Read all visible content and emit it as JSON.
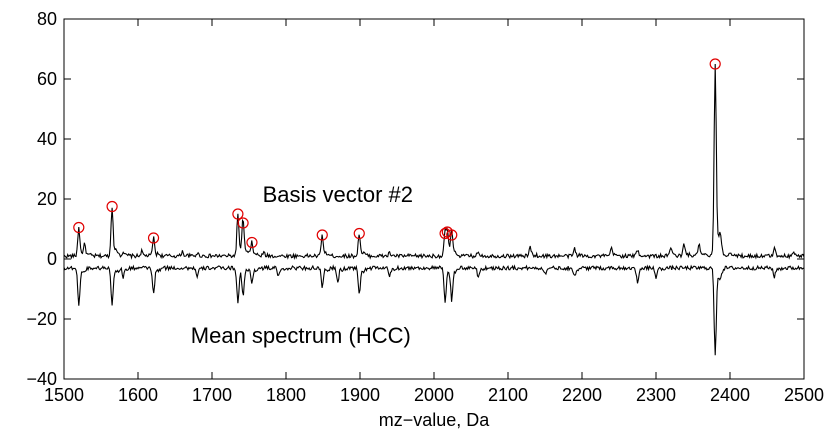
{
  "chart_data": {
    "type": "line",
    "title": "",
    "xlabel": "mz−value, Da",
    "ylabel": "",
    "xlim": [
      1500,
      2500
    ],
    "ylim": [
      -40,
      80
    ],
    "xticks": [
      1500,
      1600,
      1700,
      1800,
      1900,
      2000,
      2100,
      2200,
      2300,
      2400,
      2500
    ],
    "yticks": [
      -40,
      -20,
      0,
      20,
      40,
      60,
      80
    ],
    "xtick_labels": [
      "1500",
      "1600",
      "1700",
      "1800",
      "1900",
      "2000",
      "2100",
      "2200",
      "2300",
      "2400",
      "2500"
    ],
    "ytick_labels": [
      "−40",
      "−20",
      "0",
      "20",
      "40",
      "60",
      "80"
    ],
    "grid": false,
    "annotations": [
      {
        "text": "Basis vector #2",
        "x": 1870,
        "y": 19
      },
      {
        "text": "Mean spectrum (HCC)",
        "x": 1820,
        "y": -28
      }
    ],
    "series": [
      {
        "name": "Basis vector #2",
        "color": "#000000",
        "baseline": 1.0,
        "peaks": [
          {
            "x": 1520,
            "y": 10.5
          },
          {
            "x": 1528,
            "y": 4
          },
          {
            "x": 1565,
            "y": 17.5
          },
          {
            "x": 1580,
            "y": 2.5
          },
          {
            "x": 1605,
            "y": 2.5
          },
          {
            "x": 1621,
            "y": 7
          },
          {
            "x": 1660,
            "y": 2.5
          },
          {
            "x": 1680,
            "y": 2
          },
          {
            "x": 1735,
            "y": 15
          },
          {
            "x": 1742,
            "y": 12
          },
          {
            "x": 1754,
            "y": 5.5
          },
          {
            "x": 1770,
            "y": 2
          },
          {
            "x": 1849,
            "y": 8
          },
          {
            "x": 1899,
            "y": 8.5
          },
          {
            "x": 1940,
            "y": 2
          },
          {
            "x": 2015,
            "y": 8.5
          },
          {
            "x": 2018,
            "y": 9
          },
          {
            "x": 2024,
            "y": 8
          },
          {
            "x": 2060,
            "y": 2.5
          },
          {
            "x": 2130,
            "y": 4
          },
          {
            "x": 2190,
            "y": 3.5
          },
          {
            "x": 2240,
            "y": 3.5
          },
          {
            "x": 2275,
            "y": 3
          },
          {
            "x": 2320,
            "y": 4
          },
          {
            "x": 2338,
            "y": 5
          },
          {
            "x": 2358,
            "y": 5
          },
          {
            "x": 2380,
            "y": 65
          },
          {
            "x": 2400,
            "y": 2.5
          },
          {
            "x": 2460,
            "y": 3.5
          },
          {
            "x": 2485,
            "y": 2.5
          }
        ]
      },
      {
        "name": "Mean spectrum (HCC)",
        "color": "#000000",
        "baseline": -3.0,
        "peaks": [
          {
            "x": 1520,
            "y": -16
          },
          {
            "x": 1565,
            "y": -15
          },
          {
            "x": 1580,
            "y": -6
          },
          {
            "x": 1621,
            "y": -12
          },
          {
            "x": 1680,
            "y": -6
          },
          {
            "x": 1735,
            "y": -15
          },
          {
            "x": 1742,
            "y": -11
          },
          {
            "x": 1754,
            "y": -8
          },
          {
            "x": 1790,
            "y": -6
          },
          {
            "x": 1849,
            "y": -10
          },
          {
            "x": 1870,
            "y": -8
          },
          {
            "x": 1899,
            "y": -12
          },
          {
            "x": 1940,
            "y": -6
          },
          {
            "x": 2015,
            "y": -15
          },
          {
            "x": 2024,
            "y": -13
          },
          {
            "x": 2060,
            "y": -6
          },
          {
            "x": 2150,
            "y": -5
          },
          {
            "x": 2190,
            "y": -6
          },
          {
            "x": 2275,
            "y": -8
          },
          {
            "x": 2300,
            "y": -6
          },
          {
            "x": 2380,
            "y": -32.5
          },
          {
            "x": 2460,
            "y": -6
          }
        ]
      }
    ],
    "markers": {
      "name": "selected peaks",
      "color": "#e00000",
      "points": [
        {
          "x": 1520,
          "y": 10.5
        },
        {
          "x": 1565,
          "y": 17.5
        },
        {
          "x": 1621,
          "y": 7
        },
        {
          "x": 1735,
          "y": 15
        },
        {
          "x": 1742,
          "y": 12
        },
        {
          "x": 1754,
          "y": 5.5
        },
        {
          "x": 1849,
          "y": 8
        },
        {
          "x": 1899,
          "y": 8.5
        },
        {
          "x": 2015,
          "y": 8.5
        },
        {
          "x": 2018,
          "y": 9
        },
        {
          "x": 2024,
          "y": 8
        },
        {
          "x": 2380,
          "y": 65
        }
      ]
    }
  }
}
